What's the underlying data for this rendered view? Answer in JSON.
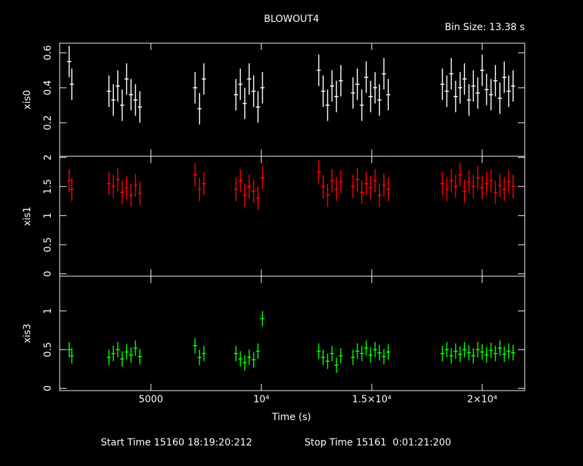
{
  "chart_data": [
    {
      "type": "scatter",
      "title": "BLOWOUT4",
      "subtitle": "Bin Size: 13.38 s",
      "ylabel": "xis0",
      "color": "#ffffff",
      "x": [
        1300,
        1420,
        3100,
        3300,
        3500,
        3700,
        3900,
        4100,
        4300,
        4500,
        7000,
        7200,
        7400,
        8850,
        9050,
        9250,
        9450,
        9650,
        9850,
        10050,
        12600,
        12800,
        13000,
        13200,
        13400,
        13600,
        14150,
        14350,
        14550,
        14750,
        14950,
        15150,
        15350,
        15550,
        15750,
        18200,
        18400,
        18600,
        18800,
        19000,
        19200,
        19400,
        19600,
        19800,
        20000,
        20200,
        20400,
        20600,
        20800,
        21000,
        21200,
        21400
      ],
      "values": [
        0.55,
        0.42,
        0.38,
        0.33,
        0.41,
        0.3,
        0.45,
        0.36,
        0.33,
        0.29,
        0.4,
        0.28,
        0.45,
        0.36,
        0.42,
        0.31,
        0.45,
        0.38,
        0.29,
        0.4,
        0.5,
        0.38,
        0.3,
        0.41,
        0.35,
        0.44,
        0.37,
        0.42,
        0.3,
        0.46,
        0.35,
        0.4,
        0.33,
        0.48,
        0.36,
        0.42,
        0.38,
        0.48,
        0.35,
        0.4,
        0.45,
        0.33,
        0.41,
        0.37,
        0.5,
        0.39,
        0.36,
        0.44,
        0.34,
        0.46,
        0.38,
        0.41
      ],
      "yerr": 0.09,
      "xlim": [
        870,
        21925
      ],
      "ylim": [
        0.008,
        0.655
      ],
      "yticks": [
        0.2,
        0.4,
        0.6
      ]
    },
    {
      "type": "scatter",
      "ylabel": "xis1",
      "color": "#ff0000",
      "x": [
        1300,
        1420,
        3100,
        3300,
        3500,
        3700,
        3900,
        4100,
        4300,
        4500,
        7000,
        7200,
        7400,
        8850,
        9050,
        9250,
        9450,
        9650,
        9850,
        10050,
        12600,
        12800,
        13000,
        13200,
        13400,
        13600,
        14150,
        14350,
        14550,
        14750,
        14950,
        15150,
        15350,
        15550,
        15750,
        18200,
        18400,
        18600,
        18800,
        19000,
        19200,
        19400,
        19600,
        19800,
        20000,
        20200,
        20400,
        20600,
        20800,
        21000,
        21200,
        21400
      ],
      "values": [
        1.6,
        1.45,
        1.55,
        1.5,
        1.62,
        1.4,
        1.48,
        1.35,
        1.52,
        1.38,
        1.7,
        1.45,
        1.55,
        1.45,
        1.6,
        1.35,
        1.5,
        1.42,
        1.3,
        1.65,
        1.75,
        1.5,
        1.35,
        1.6,
        1.45,
        1.58,
        1.5,
        1.62,
        1.4,
        1.55,
        1.48,
        1.6,
        1.35,
        1.52,
        1.45,
        1.55,
        1.45,
        1.6,
        1.5,
        1.7,
        1.42,
        1.58,
        1.5,
        1.65,
        1.48,
        1.55,
        1.6,
        1.4,
        1.52,
        1.45,
        1.58,
        1.5
      ],
      "yerr": 0.2,
      "xlim": [
        870,
        21925
      ],
      "ylim": [
        -0.04,
        2.02
      ],
      "yticks": [
        0,
        0.5,
        1,
        1.5,
        2
      ]
    },
    {
      "type": "scatter",
      "ylabel": "xis3",
      "xlabel": "Time (s)",
      "color": "#00ff00",
      "x": [
        1300,
        1420,
        3100,
        3300,
        3500,
        3700,
        3900,
        4100,
        4300,
        4500,
        7000,
        7200,
        7400,
        8850,
        9050,
        9250,
        9450,
        9650,
        9850,
        10050,
        12600,
        12800,
        13000,
        13200,
        13400,
        13600,
        14150,
        14350,
        14550,
        14750,
        14950,
        15150,
        15350,
        15550,
        15750,
        18200,
        18400,
        18600,
        18800,
        19000,
        19200,
        19400,
        19600,
        19800,
        20000,
        20200,
        20400,
        20600,
        20800,
        21000,
        21200,
        21400
      ],
      "values": [
        0.5,
        0.42,
        0.4,
        0.45,
        0.5,
        0.38,
        0.47,
        0.43,
        0.52,
        0.41,
        0.55,
        0.4,
        0.45,
        0.45,
        0.38,
        0.33,
        0.4,
        0.37,
        0.48,
        0.9,
        0.48,
        0.4,
        0.35,
        0.45,
        0.3,
        0.42,
        0.4,
        0.48,
        0.45,
        0.52,
        0.43,
        0.5,
        0.46,
        0.41,
        0.47,
        0.45,
        0.5,
        0.42,
        0.48,
        0.44,
        0.5,
        0.46,
        0.42,
        0.5,
        0.47,
        0.43,
        0.49,
        0.45,
        0.52,
        0.44,
        0.48,
        0.46
      ],
      "yerr": 0.1,
      "xlim": [
        870,
        21925
      ],
      "ylim": [
        -0.03,
        1.45
      ],
      "yticks": [
        0,
        0.5,
        1
      ],
      "xticks": [
        5000,
        {
          "value": 10000,
          "label": "10⁴"
        },
        {
          "value": 15000,
          "label": "1.5×10⁴"
        },
        {
          "value": 20000,
          "label": "2×10⁴"
        }
      ]
    }
  ],
  "footer": {
    "start_time": "Start Time 15160 18:19:20:212",
    "stop_time": "Stop Time 15161  0:01:21:200"
  }
}
